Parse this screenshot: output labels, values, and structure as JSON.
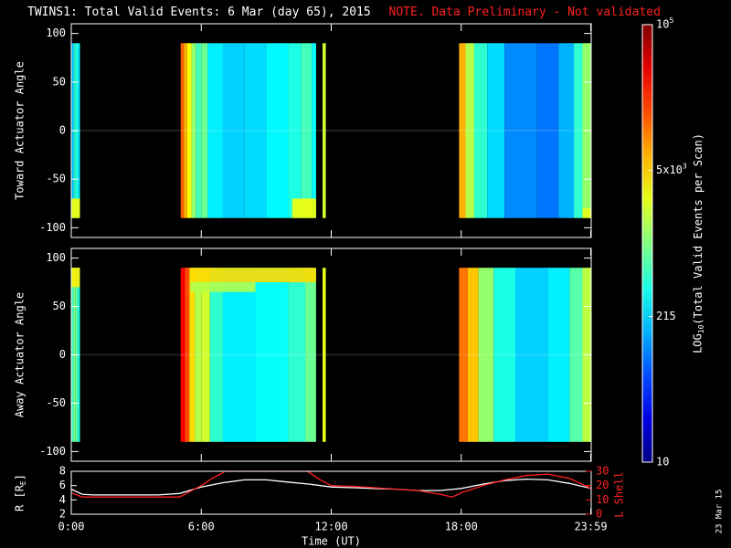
{
  "title": "TWINS1: Total Valid Events:  6 Mar (day  65), 2015",
  "note": "NOTE. Data Preliminary - Not validated",
  "date_stamp": "23 Mar 15",
  "colors": {
    "background": "#000000",
    "frame": "#ffffff",
    "r_line": "#ffffff",
    "lshell_line": "#ff2020",
    "note": "#ff2020"
  },
  "chart_data": [
    {
      "type": "heatmap",
      "panel": "toward",
      "ylabel": "Toward Actuator Angle",
      "ylim": [
        -110,
        110
      ],
      "yticks": [
        -100,
        -50,
        0,
        50,
        100
      ],
      "xlim": [
        0,
        24
      ],
      "x_tick_labels": [
        "0:00",
        "6:00",
        "12:00",
        "18:00",
        "23:59"
      ],
      "x_tick_values": [
        0,
        6,
        12,
        18,
        23.98
      ],
      "data_angle_range": [
        -90,
        90
      ],
      "blocks": [
        {
          "t0": 0.0,
          "t1": 0.1,
          "level": 0.3
        },
        {
          "t0": 0.1,
          "t1": 0.15,
          "level": 0.38
        },
        {
          "t0": 0.15,
          "t1": 0.2,
          "level": 0.45
        },
        {
          "t0": 0.2,
          "t1": 0.3,
          "level": 0.4
        },
        {
          "t0": 0.3,
          "t1": 0.4,
          "level": 0.36
        },
        {
          "t0": 5.05,
          "t1": 5.2,
          "level": 0.78
        },
        {
          "t0": 5.2,
          "t1": 5.35,
          "level": 0.7
        },
        {
          "t0": 5.35,
          "t1": 5.55,
          "level": 0.62
        },
        {
          "t0": 5.55,
          "t1": 5.75,
          "level": 0.52
        },
        {
          "t0": 5.75,
          "t1": 6.0,
          "level": 0.44
        },
        {
          "t0": 6.0,
          "t1": 6.3,
          "level": 0.48
        },
        {
          "t0": 6.3,
          "t1": 7.0,
          "level": 0.36
        },
        {
          "t0": 7.0,
          "t1": 8.0,
          "level": 0.33
        },
        {
          "t0": 8.0,
          "t1": 9.0,
          "level": 0.34
        },
        {
          "t0": 9.0,
          "t1": 10.0,
          "level": 0.37
        },
        {
          "t0": 10.0,
          "t1": 10.6,
          "level": 0.4
        },
        {
          "t0": 10.6,
          "t1": 11.1,
          "level": 0.44
        },
        {
          "t0": 11.1,
          "t1": 11.3,
          "level": 0.38
        },
        {
          "t0": 11.6,
          "t1": 11.75,
          "level": 0.58
        },
        {
          "t0": 17.9,
          "t1": 18.2,
          "level": 0.7
        },
        {
          "t0": 18.2,
          "t1": 18.6,
          "level": 0.55
        },
        {
          "t0": 18.6,
          "t1": 19.2,
          "level": 0.42
        },
        {
          "t0": 19.2,
          "t1": 20.0,
          "level": 0.34
        },
        {
          "t0": 20.0,
          "t1": 21.5,
          "level": 0.26
        },
        {
          "t0": 21.5,
          "t1": 22.5,
          "level": 0.24
        },
        {
          "t0": 22.5,
          "t1": 23.2,
          "level": 0.3
        },
        {
          "t0": 23.2,
          "t1": 23.6,
          "level": 0.42
        },
        {
          "t0": 23.6,
          "t1": 24.0,
          "level": 0.52
        }
      ],
      "regions": [
        {
          "t0": 10.2,
          "t1": 11.3,
          "a0": -90,
          "a1": -70,
          "level": 0.62
        },
        {
          "t0": 0.0,
          "t1": 0.4,
          "a0": -90,
          "a1": -70,
          "level": 0.62
        },
        {
          "t0": 23.6,
          "t1": 24.0,
          "a0": -90,
          "a1": -80,
          "level": 0.6
        }
      ]
    },
    {
      "type": "heatmap",
      "panel": "away",
      "ylabel": "Away Actuator Angle",
      "ylim": [
        -110,
        110
      ],
      "yticks": [
        -100,
        -50,
        0,
        50,
        100
      ],
      "xlim": [
        0,
        24
      ],
      "x_tick_labels": [
        "0:00",
        "6:00",
        "12:00",
        "18:00",
        "23:59"
      ],
      "x_tick_values": [
        0,
        6,
        12,
        18,
        23.98
      ],
      "data_angle_range": [
        -90,
        90
      ],
      "blocks": [
        {
          "t0": 0.0,
          "t1": 0.1,
          "level": 0.42
        },
        {
          "t0": 0.1,
          "t1": 0.2,
          "level": 0.5
        },
        {
          "t0": 0.2,
          "t1": 0.3,
          "level": 0.46
        },
        {
          "t0": 0.3,
          "t1": 0.4,
          "level": 0.4
        },
        {
          "t0": 5.05,
          "t1": 5.25,
          "level": 0.88
        },
        {
          "t0": 5.25,
          "t1": 5.45,
          "level": 0.8
        },
        {
          "t0": 5.45,
          "t1": 5.7,
          "level": 0.66
        },
        {
          "t0": 5.7,
          "t1": 6.0,
          "level": 0.55
        },
        {
          "t0": 6.0,
          "t1": 6.4,
          "level": 0.58
        },
        {
          "t0": 6.4,
          "t1": 7.0,
          "level": 0.42
        },
        {
          "t0": 7.0,
          "t1": 8.5,
          "level": 0.36
        },
        {
          "t0": 8.5,
          "t1": 10.0,
          "level": 0.38
        },
        {
          "t0": 10.0,
          "t1": 10.8,
          "level": 0.42
        },
        {
          "t0": 10.8,
          "t1": 11.3,
          "level": 0.48
        },
        {
          "t0": 11.6,
          "t1": 11.75,
          "level": 0.6
        },
        {
          "t0": 17.9,
          "t1": 18.3,
          "level": 0.76
        },
        {
          "t0": 18.3,
          "t1": 18.8,
          "level": 0.68
        },
        {
          "t0": 18.8,
          "t1": 19.5,
          "level": 0.52
        },
        {
          "t0": 19.5,
          "t1": 20.5,
          "level": 0.4
        },
        {
          "t0": 20.5,
          "t1": 22.0,
          "level": 0.33
        },
        {
          "t0": 22.0,
          "t1": 23.0,
          "level": 0.36
        },
        {
          "t0": 23.0,
          "t1": 23.6,
          "level": 0.46
        },
        {
          "t0": 23.6,
          "t1": 24.0,
          "level": 0.56
        }
      ],
      "regions": [
        {
          "t0": 5.5,
          "t1": 11.3,
          "a0": 75,
          "a1": 90,
          "level": 0.66
        },
        {
          "t0": 5.5,
          "t1": 8.5,
          "a0": 65,
          "a1": 75,
          "level": 0.55
        },
        {
          "t0": 0.0,
          "t1": 0.4,
          "a0": 70,
          "a1": 90,
          "level": 0.64
        }
      ]
    },
    {
      "type": "line",
      "panel": "orbit",
      "ylabel": "R [R",
      "ylabel_sub": "E",
      "ylabel_end": "]",
      "ylabel2": "L Shell",
      "ylim": [
        2,
        8
      ],
      "yticks": [
        2,
        4,
        6,
        8
      ],
      "ylim2": [
        0,
        30
      ],
      "yticks2": [
        0,
        10,
        20,
        30
      ],
      "xlim": [
        0,
        24
      ],
      "xlabel": "Time (UT)",
      "x_tick_labels": [
        "0:00",
        "6:00",
        "12:00",
        "18:00",
        "23:59"
      ],
      "x_tick_values": [
        0,
        6,
        12,
        18,
        23.98
      ],
      "series": [
        {
          "axis": "left",
          "color": "#ffffff",
          "x": [
            0,
            0.5,
            1,
            2,
            3,
            4,
            5,
            6,
            7,
            8,
            9,
            10,
            11,
            12,
            13,
            14,
            15,
            16,
            17,
            18,
            19,
            20,
            21,
            22,
            23,
            24
          ],
          "y": [
            5.5,
            4.8,
            4.7,
            4.7,
            4.7,
            4.7,
            4.9,
            5.8,
            6.4,
            6.8,
            6.8,
            6.5,
            6.2,
            5.8,
            5.7,
            5.6,
            5.5,
            5.3,
            5.3,
            5.6,
            6.2,
            6.7,
            6.9,
            6.8,
            6.3,
            5.6
          ]
        },
        {
          "axis": "right",
          "color": "#ff2020",
          "x": [
            0,
            0.5,
            1,
            2,
            3,
            4,
            5,
            5.5,
            6,
            6.5,
            7,
            7.1,
            10.9,
            11,
            11.5,
            12,
            13,
            14,
            15,
            16,
            17,
            17.6,
            18,
            19,
            20,
            21,
            22,
            23,
            24
          ],
          "y": [
            15,
            12,
            12,
            12,
            12,
            12,
            12,
            16,
            20,
            25,
            29,
            30,
            30,
            29,
            24,
            20,
            19.5,
            18.5,
            17.5,
            16.5,
            14,
            12,
            15,
            20,
            24,
            27,
            28,
            25,
            18
          ]
        }
      ]
    },
    {
      "type": "colorbar",
      "ylabel": "LOG",
      "ylabel_sub": "10",
      "ylabel_end": "(Total Valid Events per Scan)",
      "ticks": [
        {
          "label": "10",
          "pos": 0
        },
        {
          "label": "215",
          "pos": 0.333
        },
        {
          "label": "5x10",
          "sup": "3",
          "pos": 0.667
        },
        {
          "label": "10",
          "sup": "5",
          "pos": 1
        }
      ]
    }
  ]
}
